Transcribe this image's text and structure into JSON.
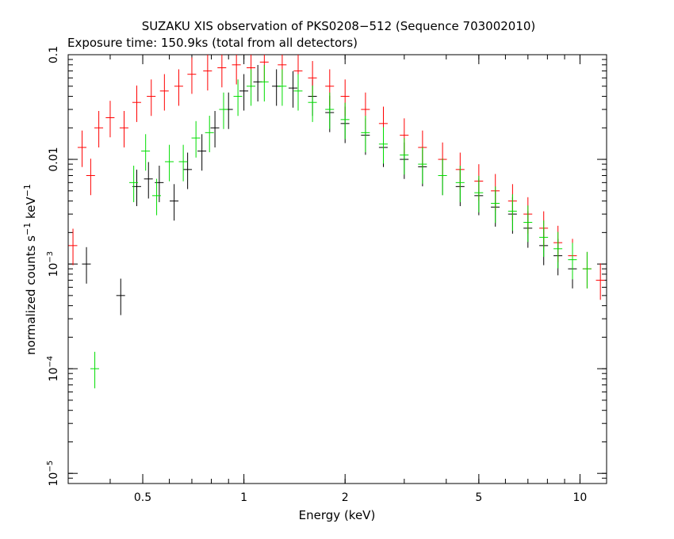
{
  "chart_data": {
    "type": "scatter",
    "title": "SUZAKU XIS observation of PKS0208−512 (Sequence 703002010)",
    "subtitle": "Exposure time: 150.9ks (total from all detectors)",
    "xlabel": "Energy (keV)",
    "ylabel_main": "normalized counts s",
    "ylabel_sup1": "−1",
    "ylabel_mid": " keV",
    "ylabel_sup2": "−1",
    "x_scale": "log",
    "y_scale": "log",
    "xlim": [
      0.3,
      12
    ],
    "ylim": [
      8e-06,
      0.1
    ],
    "x_ticks": [
      {
        "value": 0.5,
        "label": "0.5"
      },
      {
        "value": 1,
        "label": "1"
      },
      {
        "value": 2,
        "label": "2"
      },
      {
        "value": 5,
        "label": "5"
      },
      {
        "value": 10,
        "label": "10"
      }
    ],
    "y_ticks": [
      {
        "value": 0.1,
        "label": "0.1",
        "exp": ""
      },
      {
        "value": 0.01,
        "label": "0.01",
        "exp": ""
      },
      {
        "value": 0.001,
        "label": "10",
        "exp": "−3"
      },
      {
        "value": 0.0001,
        "label": "10",
        "exp": "−4"
      },
      {
        "value": 1e-05,
        "label": "10",
        "exp": "−5"
      }
    ],
    "grid": false,
    "series": [
      {
        "color": "#000000",
        "points": [
          [
            0.34,
            0.001
          ],
          [
            0.43,
            0.0005
          ],
          [
            0.48,
            0.0055
          ],
          [
            0.52,
            0.0065
          ],
          [
            0.56,
            0.006
          ],
          [
            0.62,
            0.004
          ],
          [
            0.68,
            0.008
          ],
          [
            0.75,
            0.012
          ],
          [
            0.82,
            0.02
          ],
          [
            0.9,
            0.03
          ],
          [
            1.0,
            0.045
          ],
          [
            1.1,
            0.055
          ],
          [
            1.25,
            0.05
          ],
          [
            1.4,
            0.048
          ],
          [
            1.6,
            0.04
          ],
          [
            1.8,
            0.028
          ],
          [
            2.0,
            0.022
          ],
          [
            2.3,
            0.017
          ],
          [
            2.6,
            0.013
          ],
          [
            3.0,
            0.01
          ],
          [
            3.4,
            0.0085
          ],
          [
            3.9,
            0.007
          ],
          [
            4.4,
            0.0055
          ],
          [
            5.0,
            0.0045
          ],
          [
            5.6,
            0.0035
          ],
          [
            6.3,
            0.003
          ],
          [
            7.0,
            0.0022
          ],
          [
            7.8,
            0.0015
          ],
          [
            8.6,
            0.0012
          ],
          [
            9.5,
            0.0009
          ]
        ]
      },
      {
        "color": "#ff0000",
        "points": [
          [
            0.31,
            0.0015
          ],
          [
            0.33,
            0.013
          ],
          [
            0.35,
            0.007
          ],
          [
            0.37,
            0.02
          ],
          [
            0.4,
            0.025
          ],
          [
            0.44,
            0.02
          ],
          [
            0.48,
            0.035
          ],
          [
            0.53,
            0.04
          ],
          [
            0.58,
            0.045
          ],
          [
            0.64,
            0.05
          ],
          [
            0.7,
            0.065
          ],
          [
            0.78,
            0.07
          ],
          [
            0.86,
            0.075
          ],
          [
            0.95,
            0.08
          ],
          [
            1.05,
            0.075
          ],
          [
            1.15,
            0.085
          ],
          [
            1.3,
            0.08
          ],
          [
            1.45,
            0.07
          ],
          [
            1.6,
            0.06
          ],
          [
            1.8,
            0.05
          ],
          [
            2.0,
            0.04
          ],
          [
            2.3,
            0.03
          ],
          [
            2.6,
            0.022
          ],
          [
            3.0,
            0.017
          ],
          [
            3.4,
            0.013
          ],
          [
            3.9,
            0.01
          ],
          [
            4.4,
            0.008
          ],
          [
            5.0,
            0.0062
          ],
          [
            5.6,
            0.005
          ],
          [
            6.3,
            0.004
          ],
          [
            7.0,
            0.003
          ],
          [
            7.8,
            0.0022
          ],
          [
            8.6,
            0.0016
          ],
          [
            9.5,
            0.0012
          ],
          [
            10.5,
            0.0009
          ],
          [
            11.5,
            0.0007
          ]
        ]
      },
      {
        "color": "#00dd00",
        "points": [
          [
            0.36,
            0.0001
          ],
          [
            0.47,
            0.006
          ],
          [
            0.51,
            0.012
          ],
          [
            0.55,
            0.0045
          ],
          [
            0.6,
            0.0095
          ],
          [
            0.66,
            0.0095
          ],
          [
            0.72,
            0.016
          ],
          [
            0.79,
            0.018
          ],
          [
            0.87,
            0.03
          ],
          [
            0.96,
            0.04
          ],
          [
            1.05,
            0.05
          ],
          [
            1.15,
            0.055
          ],
          [
            1.3,
            0.05
          ],
          [
            1.45,
            0.045
          ],
          [
            1.6,
            0.035
          ],
          [
            1.8,
            0.03
          ],
          [
            2.0,
            0.024
          ],
          [
            2.3,
            0.018
          ],
          [
            2.6,
            0.014
          ],
          [
            3.0,
            0.011
          ],
          [
            3.4,
            0.009
          ],
          [
            3.9,
            0.007
          ],
          [
            4.4,
            0.006
          ],
          [
            5.0,
            0.0048
          ],
          [
            5.6,
            0.0038
          ],
          [
            6.3,
            0.0032
          ],
          [
            7.0,
            0.0025
          ],
          [
            7.8,
            0.0018
          ],
          [
            8.6,
            0.0014
          ],
          [
            9.5,
            0.0011
          ],
          [
            10.5,
            0.0009
          ]
        ]
      }
    ]
  }
}
